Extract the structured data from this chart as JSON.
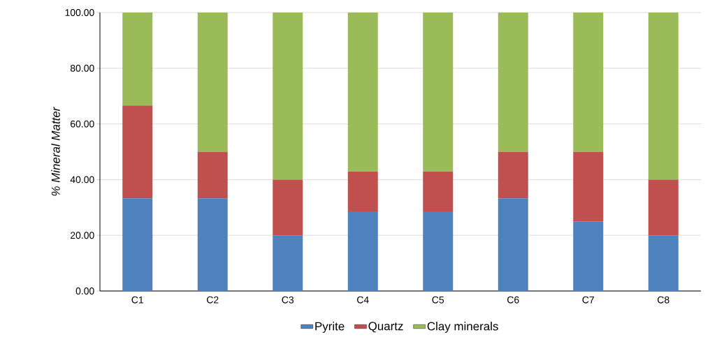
{
  "chart_data": {
    "type": "bar",
    "stacked": true,
    "ylabel": "% Mineral  Matter",
    "categories": [
      "C1",
      "C2",
      "C3",
      "C4",
      "C5",
      "C6",
      "C7",
      "C8"
    ],
    "series": [
      {
        "name": "Pyrite",
        "color": "#4f81bd",
        "values": [
          33.3,
          33.3,
          20.0,
          28.6,
          28.6,
          33.3,
          25.0,
          20.0
        ]
      },
      {
        "name": "Quartz",
        "color": "#c0504d",
        "values": [
          33.3,
          16.7,
          20.0,
          14.3,
          14.3,
          16.7,
          25.0,
          20.0
        ]
      },
      {
        "name": "Clay minerals",
        "color": "#9bbb59",
        "values": [
          33.4,
          50.0,
          60.0,
          57.1,
          57.1,
          50.0,
          50.0,
          60.0
        ]
      }
    ],
    "ylim": [
      0,
      100
    ],
    "yticks": [
      {
        "value": 0,
        "label": "0.00"
      },
      {
        "value": 20,
        "label": "20.00"
      },
      {
        "value": 40,
        "label": "40.00"
      },
      {
        "value": 60,
        "label": "60.00"
      },
      {
        "value": 80,
        "label": "80.00"
      },
      {
        "value": 100,
        "label": "100.00"
      }
    ],
    "grid": "y",
    "legend": "bottom"
  }
}
